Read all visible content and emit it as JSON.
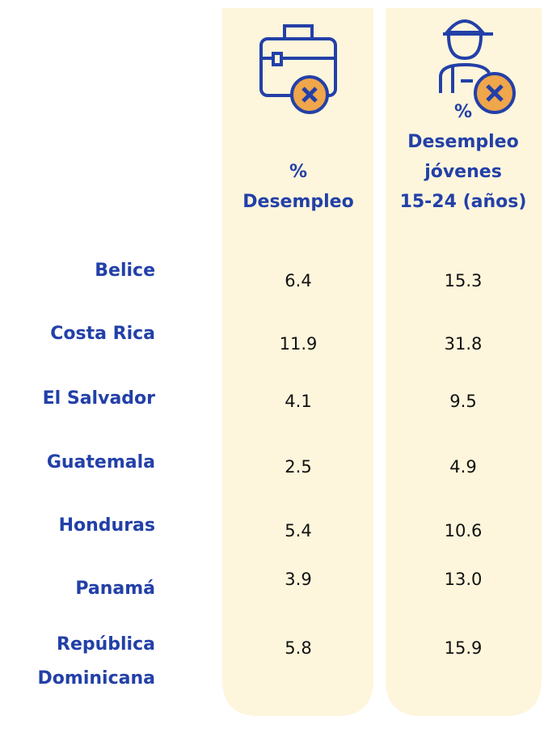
{
  "table": {
    "columns": [
      {
        "header": [
          "%",
          "Desempleo"
        ]
      },
      {
        "header": [
          "%",
          "Desempleo",
          "jóvenes",
          "15-24 (años)"
        ]
      }
    ],
    "rows": [
      {
        "country": [
          "Belice"
        ],
        "values": [
          "6.4",
          "15.3"
        ]
      },
      {
        "country": [
          "Costa Rica"
        ],
        "values": [
          "11.9",
          "31.8"
        ]
      },
      {
        "country": [
          "El Salvador"
        ],
        "values": [
          "4.1",
          "9.5"
        ]
      },
      {
        "country": [
          "Guatemala"
        ],
        "values": [
          "2.5",
          "4.9"
        ]
      },
      {
        "country": [
          "Honduras"
        ],
        "values": [
          "5.4",
          "10.6"
        ]
      },
      {
        "country": [
          "Panamá"
        ],
        "values": [
          "3.9",
          "13.0"
        ]
      },
      {
        "country": [
          "República",
          "Dominicana"
        ],
        "values": [
          "5.8",
          "15.9"
        ]
      }
    ]
  }
}
